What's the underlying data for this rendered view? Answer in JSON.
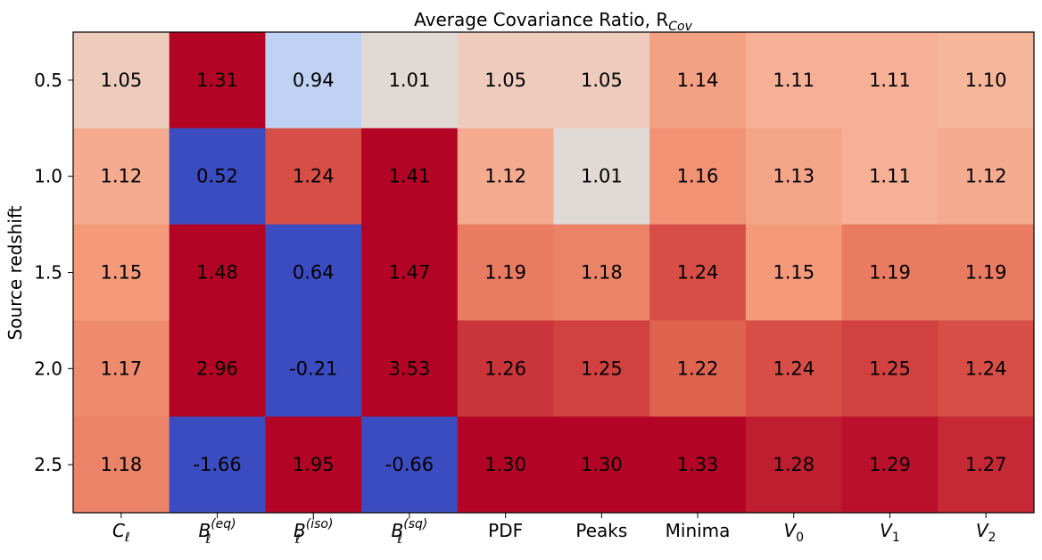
{
  "chart_data": {
    "type": "heatmap",
    "title": "Average Covariance Ratio, R",
    "title_subscript": "Cov",
    "xlabel": "",
    "ylabel": "Source redshift",
    "x_categories": [
      {
        "base": "C",
        "sub": "ℓ",
        "sup": ""
      },
      {
        "base": "B",
        "sub": "ℓ",
        "sup": "(eq)"
      },
      {
        "base": "B",
        "sub": "ℓ",
        "sup": "(iso)"
      },
      {
        "base": "B",
        "sub": "ℓ",
        "sup": "(sq)"
      },
      {
        "base": "PDF",
        "sub": "",
        "sup": ""
      },
      {
        "base": "Peaks",
        "sub": "",
        "sup": ""
      },
      {
        "base": "Minima",
        "sub": "",
        "sup": ""
      },
      {
        "base": "V",
        "sub": "0",
        "sup": ""
      },
      {
        "base": "V",
        "sub": "1",
        "sup": ""
      },
      {
        "base": "V",
        "sub": "2",
        "sup": ""
      }
    ],
    "y_categories": [
      "0.5",
      "1.0",
      "1.5",
      "2.0",
      "2.5"
    ],
    "values": [
      [
        1.05,
        1.31,
        0.94,
        1.01,
        1.05,
        1.05,
        1.14,
        1.11,
        1.11,
        1.1
      ],
      [
        1.12,
        0.52,
        1.24,
        1.41,
        1.12,
        1.01,
        1.16,
        1.13,
        1.11,
        1.12
      ],
      [
        1.15,
        1.48,
        0.64,
        1.47,
        1.19,
        1.18,
        1.24,
        1.15,
        1.19,
        1.19
      ],
      [
        1.17,
        2.96,
        -0.21,
        3.53,
        1.26,
        1.25,
        1.22,
        1.24,
        1.25,
        1.24
      ],
      [
        1.18,
        -1.66,
        1.95,
        -0.66,
        1.3,
        1.3,
        1.33,
        1.28,
        1.29,
        1.27
      ]
    ],
    "colormap": "coolwarm",
    "color_range": [
      0.7,
      1.3
    ],
    "colorbar": false,
    "grid": false
  }
}
